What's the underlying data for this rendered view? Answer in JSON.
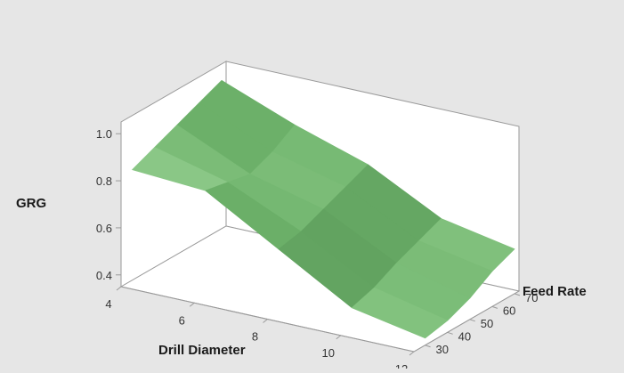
{
  "chart_data": {
    "type": "surface",
    "title": "",
    "xlabel": "Drill Diameter",
    "ylabel": "Feed Rate",
    "zlabel": "GRG",
    "x_ticks": [
      "4",
      "6",
      "8",
      "10",
      "12"
    ],
    "y_ticks": [
      "30",
      "40",
      "50",
      "60",
      "70"
    ],
    "z_ticks": [
      "0.4",
      "0.6",
      "0.8",
      "1.0"
    ],
    "x_range": [
      4,
      12
    ],
    "y_range": [
      25,
      72
    ],
    "z_range": [
      0.35,
      1.05
    ],
    "colors": {
      "background": "#e6e6e6",
      "surface_light": "#9ed69a",
      "surface_mid": "#6fb46c",
      "surface_dark": "#1e4a22",
      "axis": "#9a9a9a"
    },
    "surface": {
      "x": [
        4,
        6,
        8,
        10,
        12
      ],
      "y": [
        30,
        40,
        50,
        60,
        70
      ],
      "z": [
        [
          0.82,
          0.86,
          0.9,
          0.94,
          0.98
        ],
        [
          0.8,
          0.78,
          0.76,
          0.8,
          0.86
        ],
        [
          0.62,
          0.64,
          0.68,
          0.72,
          0.76
        ],
        [
          0.44,
          0.47,
          0.52,
          0.56,
          0.6
        ],
        [
          0.38,
          0.4,
          0.44,
          0.5,
          0.54
        ]
      ]
    }
  }
}
